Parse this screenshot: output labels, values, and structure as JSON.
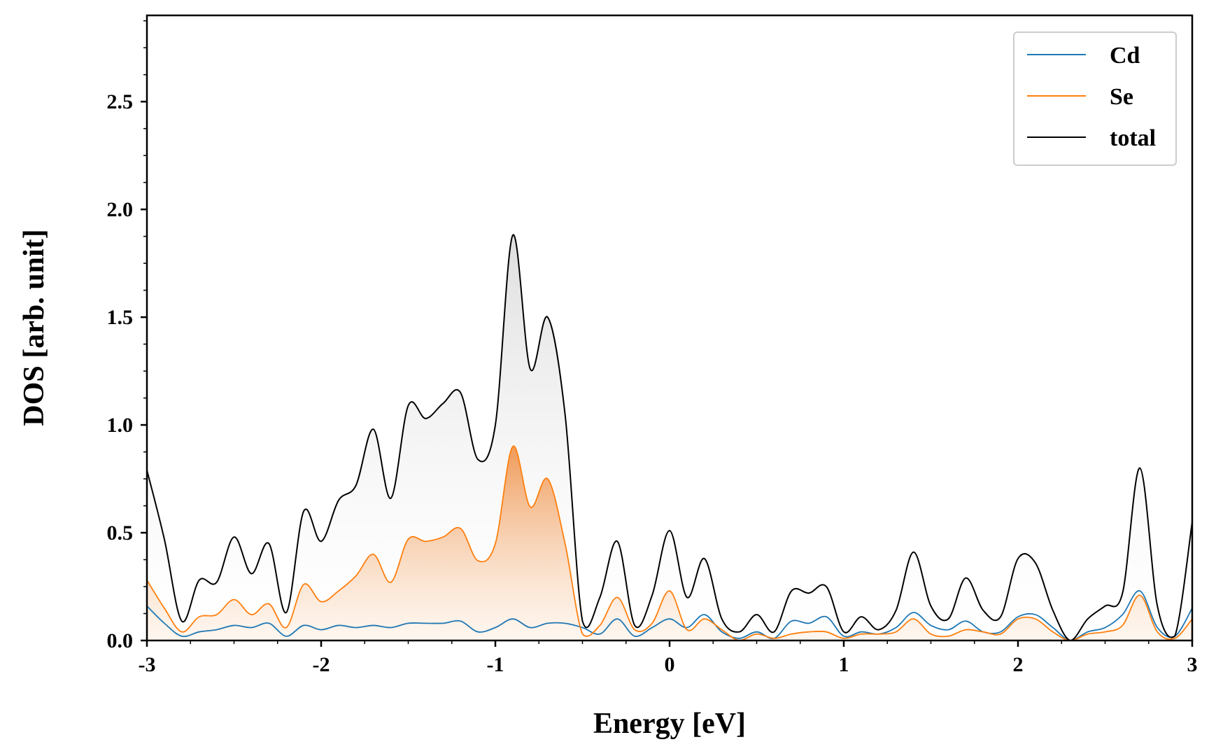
{
  "chart_data": {
    "type": "line",
    "xlabel": "Energy [eV]",
    "ylabel": "DOS [arb. unit]",
    "xlim": [
      -3,
      3
    ],
    "ylim": [
      0,
      2.9
    ],
    "xticks": [
      -3,
      -2,
      -1,
      0,
      1,
      2,
      3
    ],
    "xtick_labels": [
      "-3",
      "-2",
      "-1",
      "0",
      "1",
      "2",
      "3"
    ],
    "yticks": [
      0,
      0.5,
      1.0,
      1.5,
      2.0,
      2.5
    ],
    "ytick_labels": [
      "0.0",
      "0.5",
      "1.0",
      "1.5",
      "2.0",
      "2.5"
    ],
    "grid": false,
    "legend_position": "top-right",
    "x": [
      -3.0,
      -2.9,
      -2.8,
      -2.7,
      -2.6,
      -2.5,
      -2.4,
      -2.3,
      -2.2,
      -2.1,
      -2.0,
      -1.9,
      -1.8,
      -1.7,
      -1.6,
      -1.5,
      -1.4,
      -1.3,
      -1.2,
      -1.1,
      -1.0,
      -0.9,
      -0.8,
      -0.7,
      -0.6,
      -0.5,
      -0.4,
      -0.3,
      -0.2,
      -0.1,
      0.0,
      0.1,
      0.2,
      0.3,
      0.4,
      0.5,
      0.6,
      0.7,
      0.8,
      0.9,
      1.0,
      1.1,
      1.2,
      1.3,
      1.4,
      1.5,
      1.6,
      1.7,
      1.8,
      1.9,
      2.0,
      2.1,
      2.2,
      2.3,
      2.4,
      2.5,
      2.6,
      2.7,
      2.8,
      2.9,
      3.0
    ],
    "series": [
      {
        "name": "Cd",
        "color": "#1f77b4",
        "values": [
          0.16,
          0.08,
          0.02,
          0.04,
          0.05,
          0.07,
          0.06,
          0.08,
          0.02,
          0.07,
          0.05,
          0.07,
          0.06,
          0.07,
          0.06,
          0.08,
          0.08,
          0.08,
          0.09,
          0.04,
          0.06,
          0.1,
          0.06,
          0.08,
          0.08,
          0.06,
          0.03,
          0.1,
          0.02,
          0.06,
          0.1,
          0.06,
          0.12,
          0.04,
          0.01,
          0.04,
          0.01,
          0.09,
          0.08,
          0.11,
          0.02,
          0.04,
          0.03,
          0.06,
          0.13,
          0.07,
          0.05,
          0.09,
          0.04,
          0.04,
          0.11,
          0.12,
          0.06,
          0.0,
          0.04,
          0.06,
          0.12,
          0.23,
          0.06,
          0.02,
          0.15
        ]
      },
      {
        "name": "Se",
        "color": "#ff7f0e",
        "values": [
          0.28,
          0.15,
          0.04,
          0.11,
          0.12,
          0.19,
          0.12,
          0.17,
          0.06,
          0.26,
          0.18,
          0.23,
          0.3,
          0.4,
          0.27,
          0.47,
          0.46,
          0.48,
          0.52,
          0.37,
          0.45,
          0.9,
          0.62,
          0.75,
          0.45,
          0.03,
          0.07,
          0.2,
          0.05,
          0.08,
          0.23,
          0.05,
          0.1,
          0.05,
          0.0,
          0.03,
          0.01,
          0.03,
          0.04,
          0.04,
          0.01,
          0.03,
          0.03,
          0.04,
          0.1,
          0.03,
          0.02,
          0.05,
          0.04,
          0.03,
          0.1,
          0.1,
          0.04,
          0.0,
          0.03,
          0.04,
          0.07,
          0.21,
          0.04,
          0.01,
          0.1
        ]
      },
      {
        "name": "total",
        "color": "#000000",
        "values": [
          0.79,
          0.47,
          0.09,
          0.28,
          0.27,
          0.48,
          0.31,
          0.45,
          0.13,
          0.6,
          0.46,
          0.65,
          0.72,
          0.98,
          0.66,
          1.09,
          1.03,
          1.1,
          1.15,
          0.84,
          1.0,
          1.88,
          1.26,
          1.5,
          1.05,
          0.09,
          0.2,
          0.46,
          0.07,
          0.21,
          0.51,
          0.2,
          0.38,
          0.1,
          0.04,
          0.12,
          0.04,
          0.23,
          0.22,
          0.25,
          0.04,
          0.11,
          0.05,
          0.14,
          0.41,
          0.16,
          0.1,
          0.29,
          0.14,
          0.11,
          0.38,
          0.36,
          0.14,
          0.0,
          0.1,
          0.16,
          0.22,
          0.8,
          0.16,
          0.02,
          0.55
        ]
      }
    ]
  },
  "legend": {
    "items": [
      "Cd",
      "Se",
      "total"
    ]
  }
}
